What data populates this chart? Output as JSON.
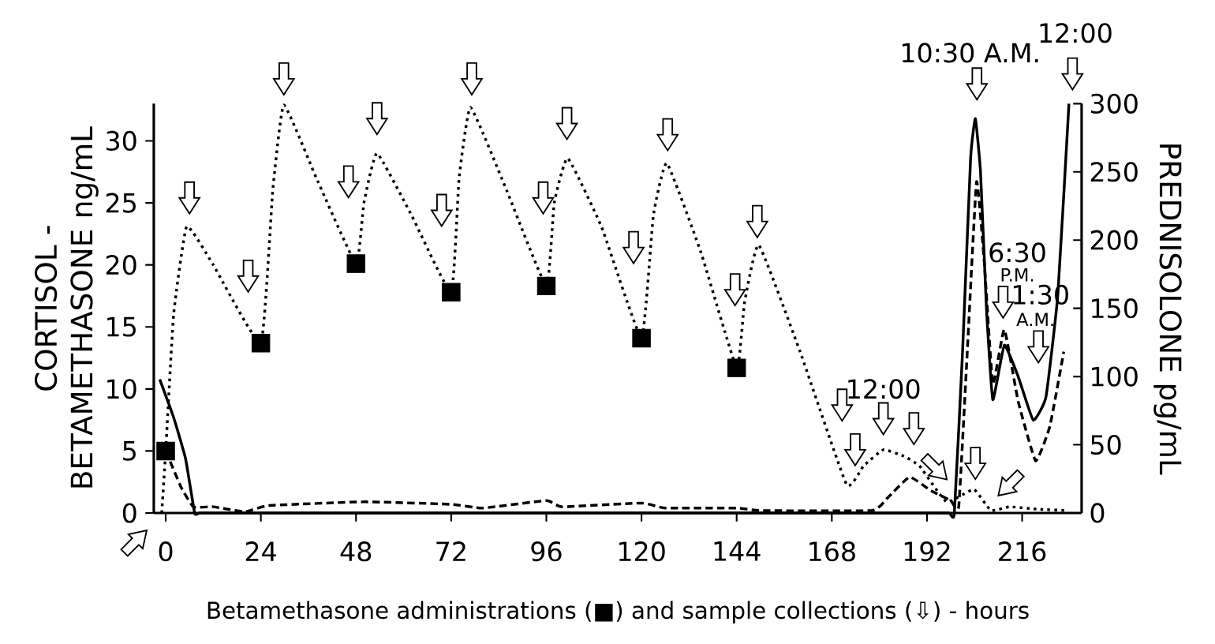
{
  "chart_data": {
    "type": "line",
    "ylabel": "CORTISOL - BETAMETHASONE ng/mL",
    "y2label": "PREDNISOLONE pg/mL",
    "xlabel": "Betamethasone administrations (■) and sample collections (⇩) - hours",
    "xlim": [
      -3,
      231
    ],
    "xticks": [
      0,
      24,
      48,
      72,
      96,
      120,
      144,
      168,
      192,
      216
    ],
    "ylim": [
      0,
      33
    ],
    "yticks": [
      0,
      5,
      10,
      15,
      20,
      25,
      30
    ],
    "y2lim": [
      0,
      300
    ],
    "y2ticks": [
      0,
      50,
      100,
      150,
      200,
      250,
      300
    ],
    "series": [
      {
        "type": "line",
        "color": "#000000",
        "line_style": "dotted",
        "x": [
          -1,
          0,
          2,
          5.3,
          12,
          24,
          27,
          29.8,
          38,
          48,
          50,
          53.3,
          62,
          72,
          74,
          76.9,
          86,
          96,
          98,
          101.4,
          110,
          120,
          123,
          126.4,
          135,
          144,
          146,
          149.6,
          160,
          171.7,
          176,
          181,
          186,
          190.1,
          196.9,
          203.8,
          208.1,
          212.8,
          220,
          227.4
        ],
        "values": [
          0,
          5,
          16,
          23.1,
          20,
          13.7,
          26,
          32.9,
          27,
          20.1,
          25,
          29,
          24,
          17.8,
          27,
          32.7,
          26,
          18.3,
          25,
          28.6,
          23,
          14.1,
          24,
          28.2,
          21,
          11.7,
          17,
          21.6,
          13,
          2.3,
          3.8,
          5.1,
          4.6,
          3.8,
          0.9,
          1.9,
          0.2,
          0.5,
          0.3,
          0.2
        ]
      },
      {
        "type": "line",
        "color": "#000000",
        "line_style": "dashed",
        "x": [
          0,
          4,
          7,
          12,
          20,
          26,
          50,
          72,
          80,
          96,
          100,
          120,
          126,
          144,
          150,
          178,
          182,
          187.6,
          193,
          198,
          200,
          202,
          204.5,
          206.5,
          208.6,
          211.5,
          215,
          219.4,
          223,
          226.5
        ],
        "values": [
          5,
          2,
          0.5,
          0.5,
          0.1,
          0.6,
          0.9,
          0.7,
          0.4,
          1.0,
          0.5,
          0.8,
          0.4,
          0.4,
          0.2,
          0.2,
          1.2,
          2.9,
          1.8,
          1.0,
          0.5,
          12,
          26.7,
          20,
          10.4,
          14.8,
          9,
          4.2,
          7,
          13
        ]
      },
      {
        "type": "line",
        "color": "#000000",
        "line_style": "solid",
        "axis": "y2",
        "x": [
          -1.5,
          2,
          5,
          7.3,
          8.5,
          12,
          20,
          100,
          190,
          197.5,
          198.9,
          201,
          203,
          204.2,
          205.5,
          207,
          208.6,
          211.5,
          215,
          218.8,
          222,
          225,
          227.8
        ],
        "values": [
          98,
          70,
          40,
          0,
          0,
          0,
          0,
          0,
          0,
          0,
          0,
          120,
          260,
          289,
          250,
          150,
          83,
          123,
          100,
          68,
          85,
          160,
          300
        ]
      },
      {
        "type": "scatter",
        "color": "#000000",
        "marker": "square",
        "x": [
          0,
          24,
          48,
          72,
          96,
          120,
          144
        ],
        "values": [
          5,
          13.7,
          20.1,
          17.8,
          18.3,
          14.1,
          11.7
        ]
      }
    ],
    "annotations": [
      "12:00",
      "10:30 A.M.",
      "12:00",
      "6:30",
      "P.M.",
      "1:30",
      "A.M."
    ]
  }
}
